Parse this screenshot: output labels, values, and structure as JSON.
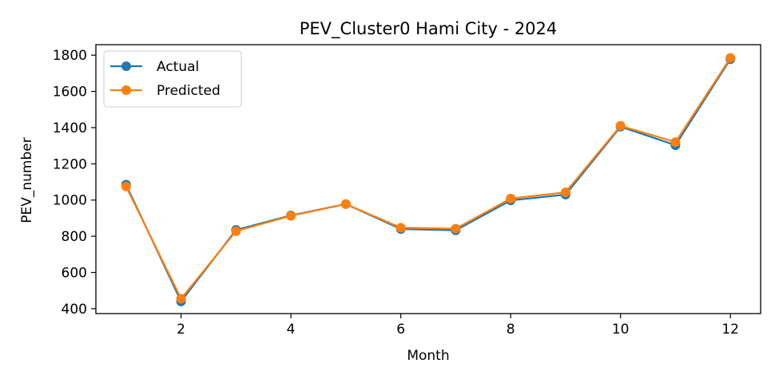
{
  "chart_data": {
    "type": "line",
    "title": "PEV_Cluster0 Hami City - 2024",
    "xlabel": "Month",
    "ylabel": "PEV_number",
    "x": [
      1,
      2,
      3,
      4,
      5,
      6,
      7,
      8,
      9,
      10,
      11,
      12
    ],
    "xlim": [
      0.45,
      12.55
    ],
    "ylim": [
      373,
      1858
    ],
    "xticks": [
      2,
      4,
      6,
      8,
      10,
      12
    ],
    "yticks": [
      400,
      600,
      800,
      1000,
      1200,
      1400,
      1600,
      1800
    ],
    "grid": false,
    "legend_position": "upper-left",
    "series": [
      {
        "name": "Actual",
        "color": "#1f77b4",
        "values": [
          1085,
          440,
          835,
          915,
          978,
          840,
          833,
          998,
          1030,
          1405,
          1303,
          1778
        ]
      },
      {
        "name": "Predicted",
        "color": "#ff7f0e",
        "values": [
          1075,
          455,
          828,
          913,
          978,
          847,
          842,
          1008,
          1043,
          1410,
          1320,
          1785
        ]
      }
    ]
  }
}
